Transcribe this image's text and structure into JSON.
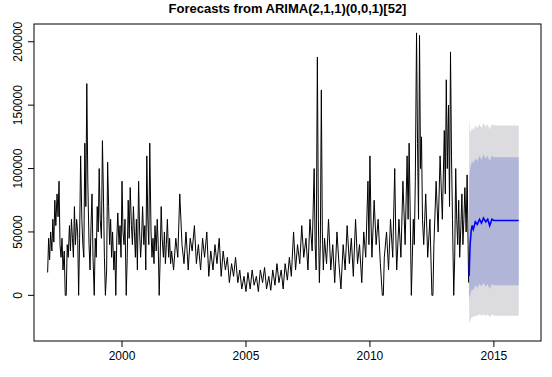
{
  "chart_data": {
    "type": "line",
    "title": "Forecasts from ARIMA(2,1,1)(0,0,1)[52]",
    "xlim": [
      1996.45,
      2016.9
    ],
    "ylim": [
      -36000,
      214000
    ],
    "xticks": [
      2000,
      2005,
      2010,
      2015
    ],
    "yticks": [
      0,
      50000,
      100000,
      150000,
      200000
    ],
    "series": [
      {
        "color": "#000000",
        "x": [
          1997.0,
          1997.04,
          1997.08,
          1997.12,
          1997.17,
          1997.21,
          1997.25,
          1997.29,
          1997.33,
          1997.38,
          1997.42,
          1997.46,
          1997.5,
          1997.54,
          1997.58,
          1997.62,
          1997.67,
          1997.71,
          1997.75,
          1997.79,
          1997.83,
          1997.88,
          1997.92,
          1997.96,
          1998.0,
          1998.04,
          1998.08,
          1998.12,
          1998.17,
          1998.21,
          1998.25,
          1998.29,
          1998.33,
          1998.38,
          1998.42,
          1998.46,
          1998.5,
          1998.54,
          1998.58,
          1998.62,
          1998.67,
          1998.71,
          1998.75,
          1998.79,
          1998.83,
          1998.88,
          1998.92,
          1998.96,
          1999.0,
          1999.04,
          1999.08,
          1999.12,
          1999.17,
          1999.21,
          1999.25,
          1999.29,
          1999.33,
          1999.38,
          1999.42,
          1999.46,
          1999.5,
          1999.54,
          1999.58,
          1999.62,
          1999.67,
          1999.71,
          1999.75,
          1999.79,
          1999.83,
          1999.88,
          1999.92,
          1999.96,
          2000.0,
          2000.04,
          2000.08,
          2000.12,
          2000.17,
          2000.21,
          2000.25,
          2000.29,
          2000.33,
          2000.38,
          2000.42,
          2000.46,
          2000.5,
          2000.54,
          2000.58,
          2000.62,
          2000.67,
          2000.71,
          2000.75,
          2000.79,
          2000.83,
          2000.88,
          2000.92,
          2000.96,
          2001.0,
          2001.04,
          2001.08,
          2001.12,
          2001.17,
          2001.21,
          2001.25,
          2001.29,
          2001.33,
          2001.38,
          2001.42,
          2001.46,
          2001.5,
          2001.54,
          2001.58,
          2001.62,
          2001.67,
          2001.71,
          2001.75,
          2001.79,
          2001.83,
          2001.88,
          2001.92,
          2001.96,
          2002.0,
          2002.08,
          2002.17,
          2002.25,
          2002.33,
          2002.42,
          2002.5,
          2002.58,
          2002.67,
          2002.75,
          2002.83,
          2002.92,
          2003.0,
          2003.08,
          2003.17,
          2003.25,
          2003.33,
          2003.42,
          2003.5,
          2003.58,
          2003.67,
          2003.75,
          2003.83,
          2003.92,
          2004.0,
          2004.08,
          2004.17,
          2004.25,
          2004.33,
          2004.42,
          2004.5,
          2004.58,
          2004.67,
          2004.75,
          2004.83,
          2004.92,
          2005.0,
          2005.08,
          2005.17,
          2005.25,
          2005.33,
          2005.42,
          2005.5,
          2005.58,
          2005.67,
          2005.75,
          2005.83,
          2005.92,
          2006.0,
          2006.08,
          2006.17,
          2006.25,
          2006.33,
          2006.42,
          2006.5,
          2006.58,
          2006.67,
          2006.75,
          2006.83,
          2006.92,
          2007.0,
          2007.08,
          2007.17,
          2007.25,
          2007.33,
          2007.42,
          2007.5,
          2007.58,
          2007.67,
          2007.75,
          2007.79,
          2007.83,
          2007.88,
          2007.92,
          2007.96,
          2008.0,
          2008.04,
          2008.08,
          2008.12,
          2008.17,
          2008.25,
          2008.33,
          2008.42,
          2008.5,
          2008.58,
          2008.67,
          2008.75,
          2008.83,
          2008.92,
          2009.0,
          2009.08,
          2009.17,
          2009.25,
          2009.33,
          2009.42,
          2009.5,
          2009.58,
          2009.67,
          2009.75,
          2009.83,
          2009.92,
          2009.96,
          2010.0,
          2010.04,
          2010.08,
          2010.17,
          2010.25,
          2010.33,
          2010.42,
          2010.5,
          2010.54,
          2010.58,
          2010.67,
          2010.75,
          2010.83,
          2010.92,
          2011.0,
          2011.04,
          2011.08,
          2011.17,
          2011.25,
          2011.33,
          2011.42,
          2011.5,
          2011.54,
          2011.58,
          2011.62,
          2011.67,
          2011.71,
          2011.75,
          2011.79,
          2011.83,
          2011.88,
          2011.92,
          2011.96,
          2012.0,
          2012.04,
          2012.08,
          2012.12,
          2012.17,
          2012.25,
          2012.33,
          2012.42,
          2012.5,
          2012.54,
          2012.58,
          2012.67,
          2012.75,
          2012.83,
          2012.92,
          2013.0,
          2013.04,
          2013.08,
          2013.12,
          2013.17,
          2013.21,
          2013.25,
          2013.29,
          2013.33,
          2013.38,
          2013.42,
          2013.46,
          2013.5,
          2013.54,
          2013.58,
          2013.62,
          2013.67,
          2013.71,
          2013.75,
          2013.79,
          2013.83,
          2013.88,
          2013.92,
          2013.96,
          2013.98
        ],
        "values": [
          18000,
          45000,
          28000,
          50000,
          35000,
          60000,
          42000,
          75000,
          55000,
          80000,
          62000,
          90000,
          40000,
          30000,
          45000,
          20000,
          35000,
          0,
          0,
          40000,
          30000,
          55000,
          35000,
          60000,
          45000,
          30000,
          70000,
          40000,
          60000,
          50000,
          0,
          45000,
          110000,
          60000,
          40000,
          30000,
          120000,
          70000,
          167000,
          90000,
          40000,
          20000,
          55000,
          80000,
          30000,
          0,
          45000,
          30000,
          70000,
          50000,
          100000,
          60000,
          45000,
          122000,
          80000,
          30000,
          0,
          20000,
          105000,
          70000,
          40000,
          60000,
          30000,
          50000,
          20000,
          35000,
          0,
          45000,
          65000,
          40000,
          55000,
          30000,
          90000,
          50000,
          40000,
          60000,
          0,
          30000,
          75000,
          45000,
          85000,
          55000,
          40000,
          70000,
          50000,
          30000,
          60000,
          20000,
          90000,
          50000,
          30000,
          45000,
          70000,
          40000,
          55000,
          20000,
          110000,
          60000,
          40000,
          120000,
          50000,
          30000,
          45000,
          25000,
          55000,
          35000,
          60000,
          40000,
          0,
          30000,
          70000,
          45000,
          30000,
          50000,
          25000,
          40000,
          60000,
          30000,
          45000,
          25000,
          35000,
          20000,
          45000,
          30000,
          80000,
          40000,
          25000,
          50000,
          20000,
          45000,
          35000,
          55000,
          25000,
          40000,
          20000,
          45000,
          30000,
          50000,
          15000,
          35000,
          20000,
          40000,
          25000,
          45000,
          15000,
          35000,
          20000,
          30000,
          10000,
          25000,
          15000,
          30000,
          10000,
          20000,
          5000,
          15000,
          3000,
          18000,
          5000,
          20000,
          8000,
          15000,
          3000,
          20000,
          10000,
          22000,
          5000,
          15000,
          4000,
          20000,
          8000,
          25000,
          10000,
          20000,
          5000,
          25000,
          12000,
          30000,
          15000,
          50000,
          20000,
          40000,
          25000,
          55000,
          30000,
          45000,
          20000,
          60000,
          35000,
          100000,
          40000,
          20000,
          188000,
          60000,
          10000,
          40000,
          162000,
          50000,
          20000,
          45000,
          25000,
          60000,
          20000,
          40000,
          10000,
          50000,
          25000,
          5000,
          40000,
          20000,
          55000,
          25000,
          45000,
          15000,
          60000,
          25000,
          40000,
          10000,
          50000,
          30000,
          90000,
          40000,
          110000,
          60000,
          30000,
          75000,
          40000,
          60000,
          25000,
          0,
          0,
          30000,
          50000,
          20000,
          60000,
          30000,
          100000,
          50000,
          20000,
          60000,
          30000,
          90000,
          40000,
          110000,
          60000,
          120000,
          70000,
          0,
          30000,
          60000,
          40000,
          90000,
          207000,
          120000,
          60000,
          205000,
          100000,
          125000,
          60000,
          40000,
          80000,
          30000,
          60000,
          0,
          0,
          40000,
          90000,
          50000,
          110000,
          60000,
          130000,
          80000,
          170000,
          100000,
          150000,
          70000,
          192000,
          110000,
          60000,
          0,
          30000,
          100000,
          60000,
          40000,
          75000,
          30000,
          55000,
          80000,
          40000,
          60000,
          85000,
          50000,
          95000,
          40000,
          10000
        ]
      }
    ],
    "forecast": {
      "color": "#0000ff",
      "x": [
        2014.0,
        2014.04,
        2014.08,
        2014.12,
        2014.17,
        2014.25,
        2014.33,
        2014.42,
        2014.5,
        2014.58,
        2014.67,
        2014.75,
        2014.83,
        2014.92,
        2015.0,
        2015.5,
        2016.0
      ],
      "values": [
        15000,
        40000,
        50000,
        55000,
        52000,
        58000,
        56000,
        60000,
        57000,
        61000,
        58000,
        60000,
        55000,
        60000,
        59000,
        59000,
        59000
      ]
    },
    "intervals": [
      {
        "color": "#dbdbe0",
        "lower": [
          -22000,
          -20000,
          -18000,
          -17000,
          -17000,
          -16000,
          -16000,
          -15000,
          -16000,
          -15000,
          -16000,
          -15000,
          -17000,
          -15000,
          -16000,
          -16000,
          -16000
        ],
        "upper": [
          140000,
          128000,
          130000,
          132000,
          130000,
          134000,
          132000,
          135000,
          132000,
          136000,
          133000,
          135000,
          131000,
          135000,
          134000,
          134000,
          134000
        ]
      },
      {
        "color": "#b1b5d8",
        "lower": [
          -2000,
          0,
          3000,
          5000,
          4000,
          8000,
          6000,
          9000,
          7000,
          10000,
          7000,
          9000,
          5000,
          9000,
          8000,
          8000,
          8000
        ],
        "upper": [
          90000,
          100000,
          103000,
          106000,
          104000,
          108000,
          106000,
          110000,
          107000,
          111000,
          108000,
          110000,
          106000,
          110000,
          109000,
          109000,
          109000
        ]
      }
    ]
  }
}
